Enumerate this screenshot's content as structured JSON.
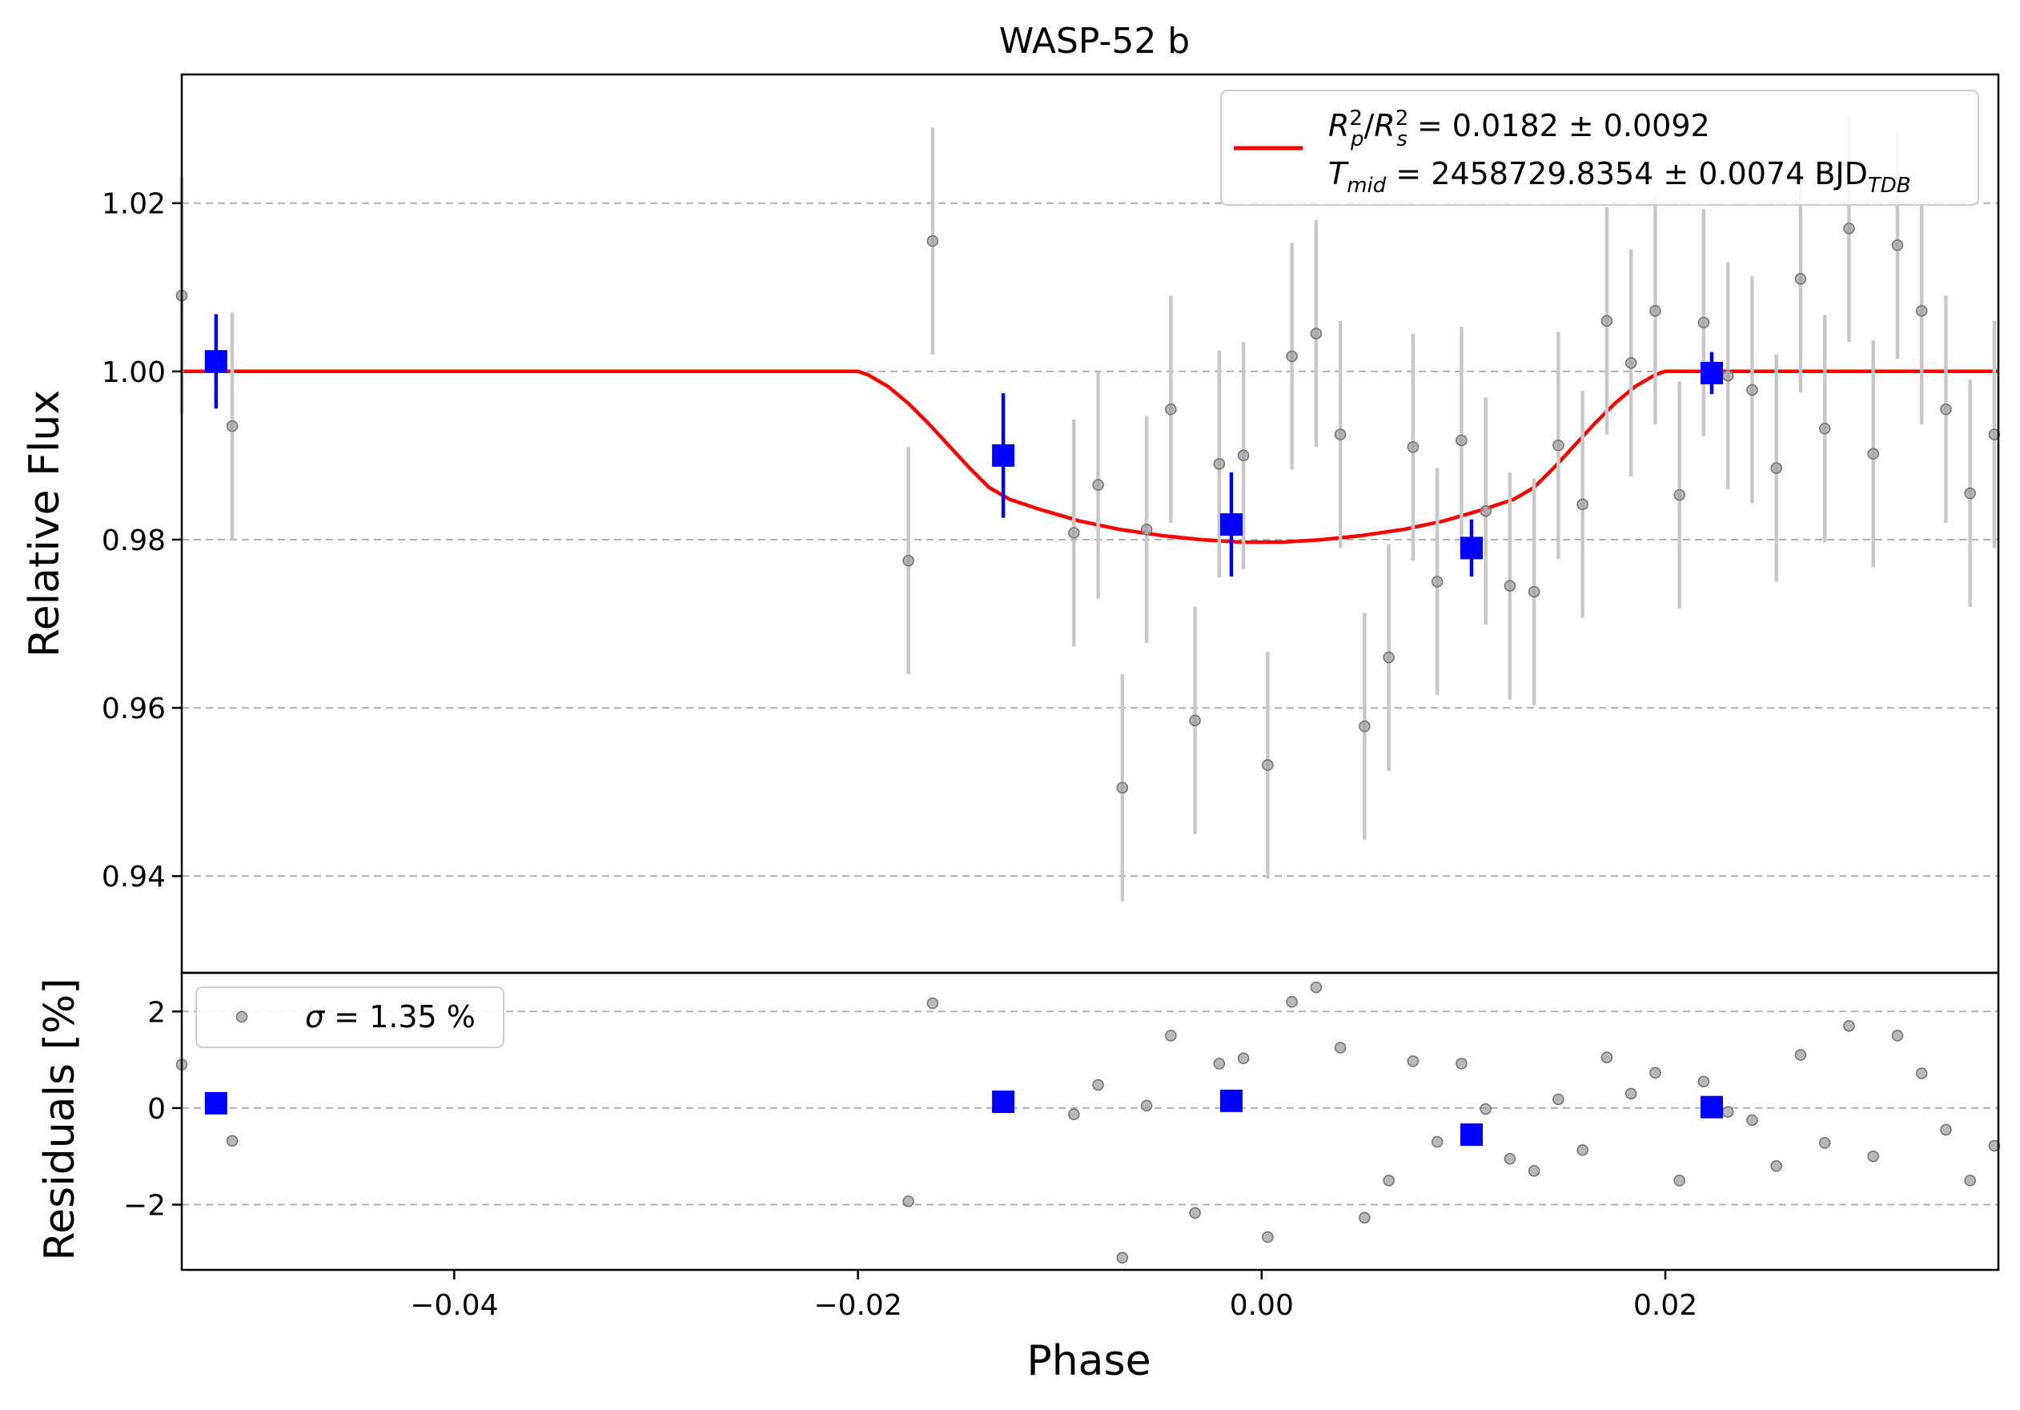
{
  "chart_data": [
    {
      "type": "scatter",
      "panel": "main",
      "title": "WASP-52 b",
      "xlabel": "",
      "ylabel": "Relative Flux",
      "xlim": [
        -0.0535,
        0.0365
      ],
      "ylim": [
        0.9285,
        1.0353
      ],
      "yticks": [
        0.94,
        0.96,
        0.98,
        1.0,
        1.02
      ],
      "ytick_labels": [
        "0.94",
        "0.96",
        "0.98",
        "1.00",
        "1.02"
      ],
      "grid": "horizontal dashed",
      "legend_placement": "top-right",
      "legend": {
        "line1": {
          "r": "R",
          "p_sup": "2",
          "p_sub": "p",
          "slash": "/",
          "s_sup": "2",
          "s_sub": "s",
          "value": " = 0.0182 ± 0.0092"
        },
        "line2": {
          "t": "T",
          "t_sub": "mid",
          "value": " = 2458729.8354 ± 0.0074 BJD",
          "unit_sub": "TDB"
        }
      },
      "series": [
        {
          "role": "data",
          "color": "#808080",
          "x": [
            -0.0535,
            -0.051,
            -0.0175,
            -0.0163,
            -0.0093,
            -0.0081,
            -0.0069,
            -0.0057,
            -0.0045,
            -0.0033,
            -0.0021,
            -0.0009,
            0.0003,
            0.0015,
            0.0027,
            0.0039,
            0.0051,
            0.0063,
            0.0075,
            0.0087,
            0.0099,
            0.0111,
            0.0123,
            0.0135,
            0.0147,
            0.0159,
            0.0171,
            0.0183,
            0.0195,
            0.0207,
            0.0219,
            0.0231,
            0.0243,
            0.0255,
            0.0267,
            0.0279,
            0.0291,
            0.0303,
            0.0315,
            0.0327,
            0.0339,
            0.0351,
            0.0363
          ],
          "y": [
            1.009,
            0.9935,
            0.9775,
            1.0155,
            0.9808,
            0.9865,
            0.9505,
            0.9812,
            0.9955,
            0.9585,
            0.989,
            0.99,
            0.9532,
            1.0018,
            1.0045,
            0.9925,
            0.9578,
            0.966,
            0.991,
            0.975,
            0.9918,
            0.9834,
            0.9745,
            0.9738,
            0.9912,
            0.9842,
            1.006,
            1.001,
            1.0072,
            0.9853,
            1.0058,
            0.9995,
            0.9978,
            0.9885,
            1.011,
            0.9932,
            1.017,
            0.9902,
            1.015,
            1.0072,
            0.9955,
            0.9855,
            0.9925
          ],
          "err": [
            0.014,
            0.0135,
            0.0135,
            0.0135,
            0.0135,
            0.0135,
            0.0135,
            0.0135,
            0.0135,
            0.0135,
            0.0135,
            0.0135,
            0.0135,
            0.0135,
            0.0135,
            0.0135,
            0.0135,
            0.0135,
            0.0135,
            0.0135,
            0.0135,
            0.0135,
            0.0135,
            0.0135,
            0.0135,
            0.0135,
            0.0135,
            0.0135,
            0.0135,
            0.0135,
            0.0135,
            0.0135,
            0.0135,
            0.0135,
            0.0135,
            0.0135,
            0.0135,
            0.0135,
            0.0135,
            0.0135,
            0.0135,
            0.0135,
            0.0135
          ]
        },
        {
          "role": "binned",
          "color": "#0000ff",
          "x": [
            -0.0518,
            -0.0128,
            -0.0015,
            0.0104,
            0.0223
          ],
          "y": [
            1.0012,
            0.99,
            0.9818,
            0.979,
            0.9998
          ],
          "err": [
            0.0056,
            0.0074,
            0.0062,
            0.0034,
            0.0025
          ]
        },
        {
          "role": "model",
          "color": "#ff0000",
          "x": [
            -0.0535,
            -0.02,
            -0.0195,
            -0.0185,
            -0.0175,
            -0.0165,
            -0.0155,
            -0.0145,
            -0.0135,
            -0.0125,
            -0.011,
            -0.009,
            -0.007,
            -0.005,
            -0.003,
            -0.001,
            0.0,
            0.001,
            0.003,
            0.005,
            0.007,
            0.009,
            0.011,
            0.0125,
            0.0135,
            0.0145,
            0.0155,
            0.0165,
            0.0175,
            0.0185,
            0.0195,
            0.02,
            0.0365
          ],
          "y": [
            1.0,
            1.0,
            0.9996,
            0.9982,
            0.9962,
            0.9938,
            0.9912,
            0.9886,
            0.9862,
            0.9848,
            0.9836,
            0.9822,
            0.9812,
            0.9805,
            0.98,
            0.9797,
            0.9797,
            0.9797,
            0.98,
            0.9805,
            0.9812,
            0.9822,
            0.9836,
            0.9848,
            0.9862,
            0.9886,
            0.9912,
            0.9938,
            0.9962,
            0.9982,
            0.9996,
            1.0,
            1.0
          ]
        }
      ]
    },
    {
      "type": "scatter",
      "panel": "residuals",
      "xlabel": "Phase",
      "ylabel": "Residuals [%]",
      "xlim": [
        -0.0535,
        0.0365
      ],
      "ylim": [
        -3.35,
        2.8
      ],
      "xticks": [
        -0.04,
        -0.02,
        0.0,
        0.02
      ],
      "xtick_labels": [
        "−0.04",
        "−0.02",
        "0.00",
        "0.02"
      ],
      "yticks": [
        -2,
        0,
        2
      ],
      "ytick_labels": [
        "−2",
        "0",
        "2"
      ],
      "grid": "horizontal dashed",
      "legend_placement": "top-left",
      "legend": {
        "sigma": "σ",
        "text": " = 1.35 %"
      },
      "series": [
        {
          "role": "residuals",
          "color": "#808080",
          "x": [
            -0.0535,
            -0.051,
            -0.0175,
            -0.0163,
            -0.0093,
            -0.0081,
            -0.0069,
            -0.0057,
            -0.0045,
            -0.0033,
            -0.0021,
            -0.0009,
            0.0003,
            0.0015,
            0.0027,
            0.0039,
            0.0051,
            0.0063,
            0.0075,
            0.0087,
            0.0099,
            0.0111,
            0.0123,
            0.0135,
            0.0147,
            0.0159,
            0.0171,
            0.0183,
            0.0195,
            0.0207,
            0.0219,
            0.0231,
            0.0243,
            0.0255,
            0.0267,
            0.0279,
            0.0291,
            0.0303,
            0.0315,
            0.0327,
            0.0339,
            0.0351,
            0.0363
          ],
          "y": [
            0.9,
            -0.68,
            -1.93,
            2.17,
            -0.13,
            0.48,
            -3.1,
            0.05,
            1.5,
            -2.17,
            0.92,
            1.03,
            -2.67,
            2.2,
            2.5,
            1.25,
            -2.27,
            -1.5,
            0.97,
            -0.7,
            0.92,
            -0.02,
            -1.05,
            -1.3,
            0.18,
            -0.87,
            1.05,
            0.3,
            0.73,
            -1.5,
            0.55,
            -0.08,
            -0.25,
            -1.2,
            1.1,
            -0.72,
            1.7,
            -1.0,
            1.5,
            0.72,
            -0.45,
            -1.5,
            -0.78
          ]
        },
        {
          "role": "binned",
          "color": "#0000ff",
          "x": [
            -0.0518,
            -0.0128,
            -0.0015,
            0.0104,
            0.0223
          ],
          "y": [
            0.1,
            0.13,
            0.15,
            -0.55,
            0.02
          ]
        }
      ]
    }
  ]
}
